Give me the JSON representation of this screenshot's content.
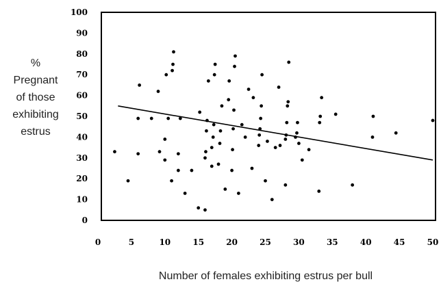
{
  "chart_data": {
    "type": "scatter",
    "title": "",
    "xlabel": "Number of females exhibiting estrus per bull",
    "ylabel_lines": [
      "%",
      "Pregnant",
      "of those",
      "exhibiting",
      "estrus"
    ],
    "xlim": [
      0,
      50
    ],
    "ylim": [
      0,
      100
    ],
    "x_ticks": [
      0,
      5,
      10,
      15,
      20,
      25,
      30,
      35,
      40,
      45,
      50
    ],
    "y_ticks": [
      0,
      10,
      20,
      30,
      40,
      50,
      60,
      70,
      80,
      90,
      100
    ],
    "grid": false,
    "trendline": {
      "x": [
        3,
        50
      ],
      "y": [
        55,
        29
      ]
    },
    "points": [
      [
        2.5,
        33
      ],
      [
        4.5,
        19
      ],
      [
        6,
        32
      ],
      [
        6,
        49
      ],
      [
        6.2,
        65
      ],
      [
        8,
        49
      ],
      [
        9,
        62
      ],
      [
        9.2,
        33
      ],
      [
        10,
        29
      ],
      [
        10,
        39
      ],
      [
        10.2,
        70
      ],
      [
        10.5,
        49
      ],
      [
        11,
        19
      ],
      [
        11.1,
        72
      ],
      [
        11.2,
        75
      ],
      [
        11.3,
        81
      ],
      [
        12,
        24
      ],
      [
        12,
        32
      ],
      [
        12.3,
        49
      ],
      [
        13,
        13
      ],
      [
        14,
        24
      ],
      [
        15,
        6
      ],
      [
        15.2,
        52
      ],
      [
        16,
        5
      ],
      [
        16,
        30
      ],
      [
        16.1,
        33
      ],
      [
        16.2,
        43
      ],
      [
        16.3,
        48
      ],
      [
        16.5,
        67
      ],
      [
        17,
        26
      ],
      [
        17,
        35
      ],
      [
        17.2,
        40
      ],
      [
        17.3,
        46
      ],
      [
        17.4,
        70
      ],
      [
        17.5,
        75
      ],
      [
        18,
        27
      ],
      [
        18.2,
        37
      ],
      [
        18.3,
        43
      ],
      [
        18.5,
        55
      ],
      [
        19,
        15
      ],
      [
        19.5,
        58
      ],
      [
        19.6,
        67
      ],
      [
        20,
        24
      ],
      [
        20.1,
        34
      ],
      [
        20.2,
        44
      ],
      [
        20.3,
        53
      ],
      [
        20.4,
        74
      ],
      [
        20.5,
        79
      ],
      [
        21,
        13
      ],
      [
        21.5,
        46
      ],
      [
        22,
        40
      ],
      [
        22.5,
        63
      ],
      [
        23,
        25
      ],
      [
        23.2,
        59
      ],
      [
        24,
        36
      ],
      [
        24.1,
        41
      ],
      [
        24.2,
        44
      ],
      [
        24.3,
        49
      ],
      [
        24.4,
        55
      ],
      [
        24.5,
        70
      ],
      [
        25,
        19
      ],
      [
        25.3,
        38
      ],
      [
        26,
        10
      ],
      [
        26.5,
        35
      ],
      [
        27,
        64
      ],
      [
        27.2,
        36
      ],
      [
        28,
        17
      ],
      [
        28,
        39
      ],
      [
        28.1,
        41
      ],
      [
        28.2,
        47
      ],
      [
        28.3,
        55
      ],
      [
        28.4,
        57
      ],
      [
        28.5,
        76
      ],
      [
        29.5,
        40
      ],
      [
        29.7,
        42
      ],
      [
        29.8,
        47
      ],
      [
        30,
        37
      ],
      [
        30.5,
        29
      ],
      [
        31.5,
        34
      ],
      [
        33,
        14
      ],
      [
        33.1,
        47
      ],
      [
        33.2,
        50
      ],
      [
        33.4,
        59
      ],
      [
        35.5,
        51
      ],
      [
        38,
        17
      ],
      [
        41,
        40
      ],
      [
        41.1,
        50
      ],
      [
        44.5,
        42
      ],
      [
        50,
        48
      ]
    ]
  }
}
